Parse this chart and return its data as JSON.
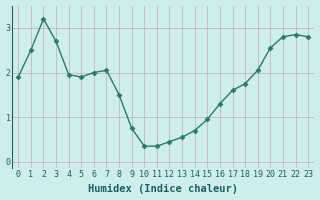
{
  "x": [
    0,
    1,
    2,
    3,
    4,
    5,
    6,
    7,
    8,
    9,
    10,
    11,
    12,
    13,
    14,
    15,
    16,
    17,
    18,
    19,
    20,
    21,
    22,
    23
  ],
  "y": [
    1.9,
    2.5,
    3.2,
    2.7,
    1.95,
    1.9,
    2.0,
    2.05,
    1.5,
    0.75,
    0.35,
    0.35,
    0.45,
    0.55,
    0.7,
    0.95,
    1.3,
    1.6,
    1.75,
    2.05,
    2.55,
    2.8,
    2.85,
    2.8
  ],
  "line_color": "#2a7a6a",
  "marker": "D",
  "marker_size": 2.5,
  "bg_color": "#ceeeed",
  "grid_color": "#c8aaaa",
  "xlabel": "Humidex (Indice chaleur)",
  "xlabel_fontsize": 7.5,
  "tick_fontsize": 6,
  "tick_color": "#1a6060",
  "yticks": [
    0,
    1,
    2,
    3
  ],
  "xticks": [
    0,
    1,
    2,
    3,
    4,
    5,
    6,
    7,
    8,
    9,
    10,
    11,
    12,
    13,
    14,
    15,
    16,
    17,
    18,
    19,
    20,
    21,
    22,
    23
  ],
  "ylim": [
    -0.15,
    3.5
  ],
  "xlim": [
    -0.5,
    23.5
  ]
}
